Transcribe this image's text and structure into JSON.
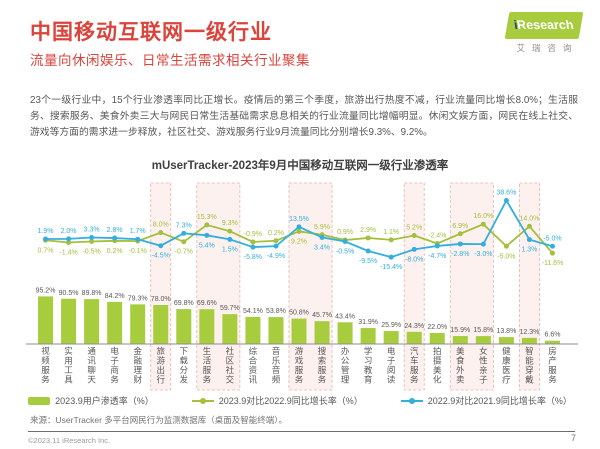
{
  "header": {
    "title": "中国移动互联网一级行业",
    "subtitle": "流量向休闲娱乐、日常生活需求相关行业聚集",
    "logo": {
      "brand_i": "i",
      "brand_rest": "Research",
      "brand_cn": "艾瑞咨询"
    }
  },
  "body_text": "23个一级行业中，15个行业渗透率同比正增长。疫情后的第三个季度，旅游出行热度不减，行业流量同比增长8.0%；生活服务、搜索服务、美食外卖三大与网民日常生活基础需求息息相关的行业流量同比增幅明显。休闲文娱方面，网民在线上社交、游戏等方面的需求进一步释放，社区社交、游戏服务行业9月流量同比分别增长9.3%、9.2%。",
  "chart_data": {
    "type": "bar",
    "title": "mUserTracker-2023年9月中国移动互联网一级行业渗透率",
    "categories": [
      "视频服务",
      "实用工具",
      "通讯聊天",
      "电子商务",
      "金融理财",
      "旅游出行",
      "下载分发",
      "生活服务",
      "社区社交",
      "综合资讯",
      "音乐音频",
      "游戏服务",
      "搜索服务",
      "办公管理",
      "学习教育",
      "电子阅读",
      "汽车服务",
      "拍摄美化",
      "美食外卖",
      "女性亲子",
      "健康医疗",
      "智能穿戴",
      "房产服务"
    ],
    "series": [
      {
        "name": "2023.9用户渗透率（%）",
        "type": "bar",
        "color": "#a7cd3f",
        "values": [
          95.2,
          90.5,
          89.8,
          84.2,
          79.3,
          78.0,
          69.8,
          69.6,
          59.7,
          54.1,
          53.8,
          50.8,
          45.7,
          43.4,
          31.9,
          25.9,
          24.3,
          22.0,
          15.9,
          15.8,
          13.8,
          12.3,
          6.6
        ]
      },
      {
        "name": "2023.9对比2022.9同比增长率（%）",
        "type": "line",
        "color": "#a3bf3c",
        "values": [
          0.7,
          -1.4,
          -0.5,
          0.2,
          -0.1,
          8.0,
          -0.7,
          15.3,
          9.3,
          -0.9,
          0.2,
          9.2,
          5.9,
          0.9,
          2.9,
          1.1,
          5.2,
          -2.4,
          6.9,
          16.0,
          -5.0,
          14.0,
          -11.6
        ]
      },
      {
        "name": "2022.9对比2021.9同比增长率（%）",
        "type": "line",
        "color": "#33aede",
        "values": [
          1.9,
          2.0,
          3.3,
          2.8,
          1.7,
          -4.5,
          7.3,
          5.4,
          1.5,
          -5.8,
          -4.9,
          13.5,
          3.4,
          -0.5,
          -9.5,
          -15.4,
          -8.0,
          -4.7,
          -2.8,
          -3.0,
          38.6,
          1.3,
          -5.0
        ]
      }
    ],
    "highlight_bands": [
      {
        "from": 5,
        "to": 5
      },
      {
        "from": 7,
        "to": 8
      },
      {
        "from": 11,
        "to": 12
      },
      {
        "from": 16,
        "to": 16
      },
      {
        "from": 18,
        "to": 19
      },
      {
        "from": 21,
        "to": 21
      }
    ],
    "band_fill": "#fdf1ef",
    "band_border": "#e3b4ae",
    "ylim_line": [
      -16,
      40
    ],
    "grid": false,
    "legend_position": "bottom"
  },
  "footer": {
    "source": "来源：UserTracker 多平台网民行为监测数据库（桌面及智能终端）。",
    "copyright": "©2023.11 iResearch Inc.",
    "page_number": "7"
  }
}
